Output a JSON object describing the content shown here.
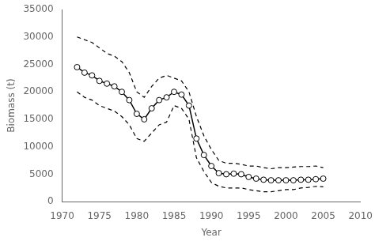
{
  "chart_data": {
    "type": "line",
    "x": [
      1972,
      1973,
      1974,
      1975,
      1976,
      1977,
      1978,
      1979,
      1980,
      1981,
      1982,
      1983,
      1984,
      1985,
      1986,
      1987,
      1988,
      1989,
      1990,
      1991,
      1992,
      1993,
      1994,
      1995,
      1996,
      1997,
      1998,
      1999,
      2000,
      2001,
      2002,
      2003,
      2004,
      2005
    ],
    "series": [
      {
        "color": "#000000",
        "line_style": "dashed",
        "marker": "none",
        "values": [
          30000,
          29500,
          29000,
          28000,
          27000,
          26500,
          25500,
          23500,
          20000,
          19000,
          21000,
          22500,
          23000,
          22500,
          22000,
          20000,
          15500,
          12000,
          9500,
          7500,
          7000,
          7000,
          6800,
          6500,
          6500,
          6200,
          6000,
          6200,
          6200,
          6300,
          6400,
          6400,
          6500,
          6200
        ]
      },
      {
        "color": "#000000",
        "line_style": "dashed",
        "marker": "none",
        "values": [
          20000,
          19000,
          18500,
          17500,
          17000,
          16500,
          15500,
          14000,
          11500,
          11000,
          12500,
          14000,
          14500,
          17500,
          17000,
          15000,
          8000,
          5500,
          3500,
          2800,
          2500,
          2500,
          2500,
          2200,
          2000,
          1800,
          1800,
          2000,
          2200,
          2200,
          2500,
          2600,
          2800,
          2700
        ]
      },
      {
        "color": "#000000",
        "line_style": "solid",
        "marker": "circle",
        "values": [
          24500,
          23500,
          23000,
          22000,
          21500,
          21000,
          20000,
          18500,
          16000,
          15000,
          17000,
          18500,
          19000,
          20000,
          19500,
          17500,
          11500,
          8500,
          6500,
          5200,
          5000,
          5100,
          5000,
          4500,
          4200,
          4000,
          3900,
          3900,
          3900,
          3900,
          4000,
          4000,
          4100,
          4200
        ]
      }
    ],
    "xlabel": "Year",
    "ylabel": "Biomass (t)",
    "xlim": [
      1970,
      2010
    ],
    "xticks": [
      1970,
      1975,
      1980,
      1985,
      1990,
      1995,
      2000,
      2005,
      2010
    ],
    "ylim": [
      0,
      35000
    ],
    "yticks": [
      0,
      5000,
      10000,
      15000,
      20000,
      25000,
      30000,
      35000
    ],
    "grid": false
  }
}
